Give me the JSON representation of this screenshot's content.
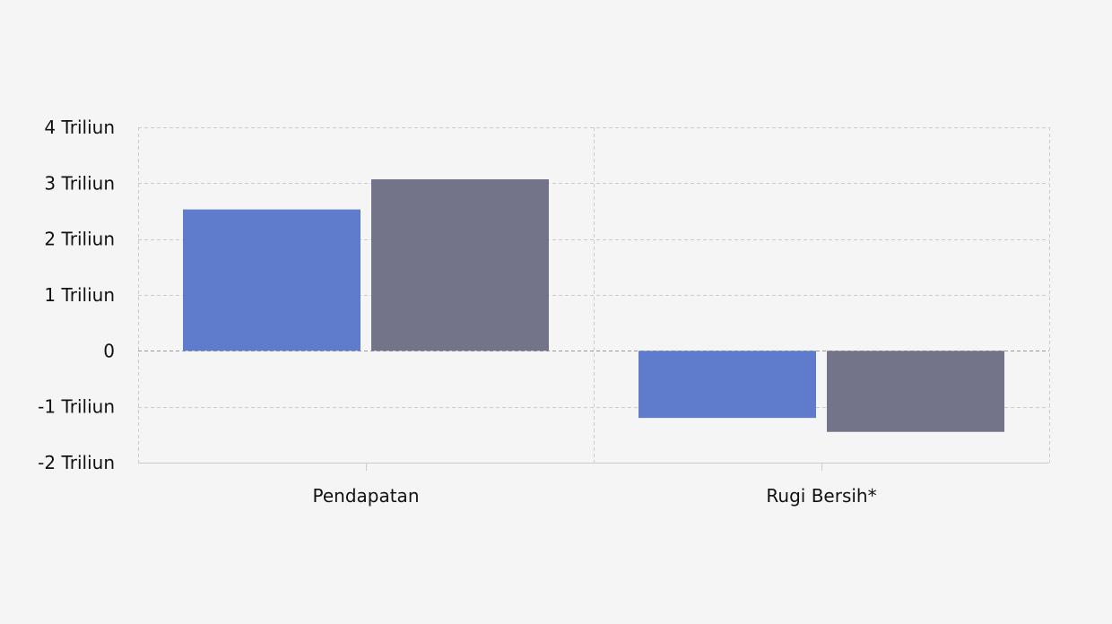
{
  "chart_data": {
    "type": "bar",
    "categories": [
      "Pendapatan",
      "Rugi Bersih*"
    ],
    "series": [
      {
        "color": "#5f7bcb",
        "values": [
          2.53,
          -1.2
        ]
      },
      {
        "color": "#737389",
        "values": [
          3.07,
          -1.45
        ]
      }
    ],
    "ylim": [
      -2,
      4
    ],
    "y_ticks": [
      4,
      3,
      2,
      1,
      0,
      -1,
      -2
    ],
    "y_tick_labels": [
      "4 Triliun",
      "3 Triliun",
      "2 Triliun",
      "1 Triliun",
      "0",
      "-1 Triliun",
      "-2 Triliun"
    ],
    "grid": true,
    "legend": "none"
  }
}
